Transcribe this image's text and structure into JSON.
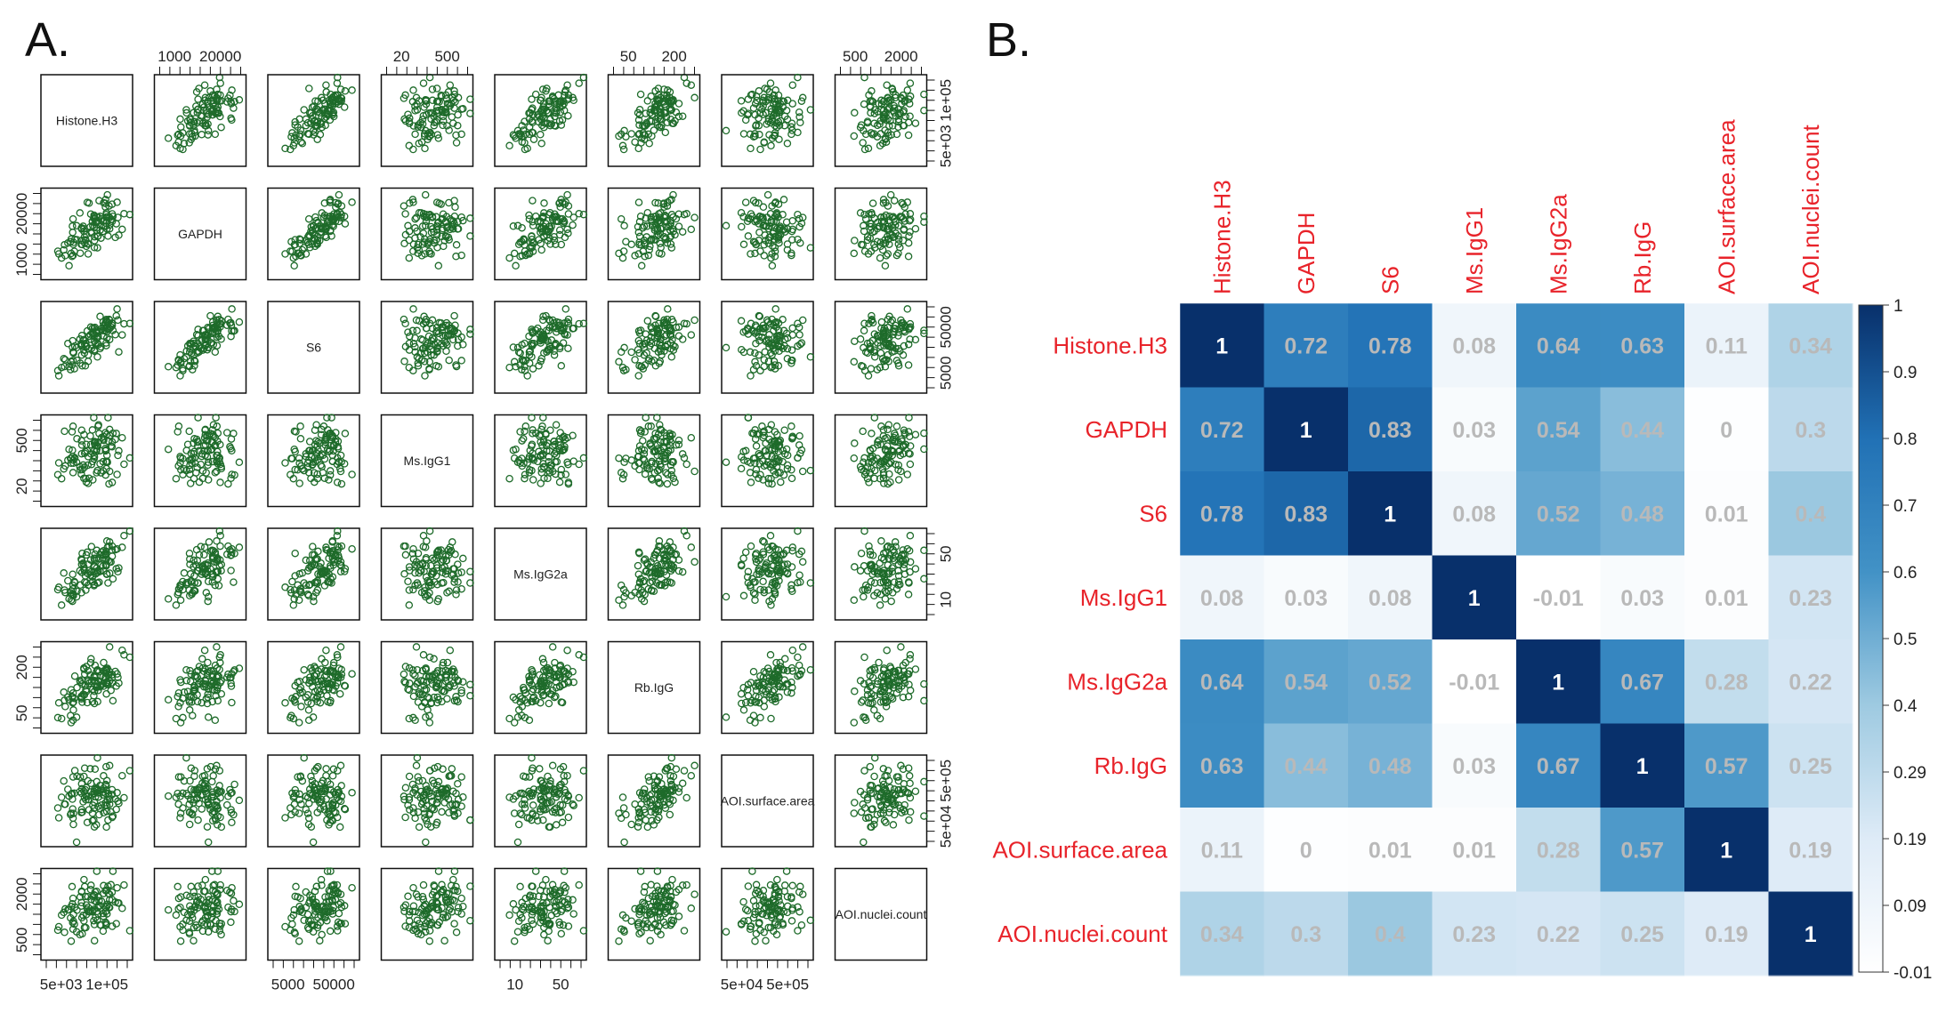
{
  "panels": {
    "a_label": "A.",
    "b_label": "B."
  },
  "scatter_matrix": {
    "variables": [
      "Histone.H3",
      "GAPDH",
      "S6",
      "Ms.IgG1",
      "Ms.IgG2a",
      "Rb.IgG",
      "AOI.surface.area",
      "AOI.nuclei.count"
    ],
    "point_color": "#1e6b2a",
    "top_ticks": [
      {
        "col": 1,
        "labels": [
          "1000",
          "20000"
        ]
      },
      {
        "col": 3,
        "labels": [
          "20",
          "500"
        ]
      },
      {
        "col": 5,
        "labels": [
          "50",
          "200"
        ]
      },
      {
        "col": 7,
        "labels": [
          "500",
          "2000"
        ]
      }
    ],
    "bottom_ticks": [
      {
        "col": 0,
        "labels": [
          "5e+03",
          "1e+05"
        ]
      },
      {
        "col": 2,
        "labels": [
          "5000",
          "50000"
        ]
      },
      {
        "col": 4,
        "labels": [
          "10",
          "50"
        ]
      },
      {
        "col": 6,
        "labels": [
          "5e+04",
          "5e+05"
        ]
      }
    ],
    "left_ticks": [
      {
        "row": 1,
        "labels": [
          "1000",
          "20000"
        ]
      },
      {
        "row": 3,
        "labels": [
          "20",
          "500"
        ]
      },
      {
        "row": 5,
        "labels": [
          "50",
          "200"
        ]
      },
      {
        "row": 7,
        "labels": [
          "500",
          "2000"
        ]
      }
    ],
    "right_ticks": [
      {
        "row": 0,
        "labels": [
          "5e+03",
          "1e+05"
        ]
      },
      {
        "row": 2,
        "labels": [
          "5000",
          "50000"
        ]
      },
      {
        "row": 4,
        "labels": [
          "10",
          "50"
        ]
      },
      {
        "row": 6,
        "labels": [
          "5e+04",
          "5e+05"
        ]
      }
    ]
  },
  "chart_data": [
    {
      "type": "scatter",
      "title": "A.",
      "description": "Pairwise scatterplot matrix",
      "variables": [
        "Histone.H3",
        "GAPDH",
        "S6",
        "Ms.IgG1",
        "Ms.IgG2a",
        "Rb.IgG",
        "AOI.surface.area",
        "AOI.nuclei.count"
      ],
      "axis_scale": "log",
      "axis_ticks": {
        "Histone.H3": [
          "5e+03",
          "1e+05"
        ],
        "GAPDH": [
          "1000",
          "20000"
        ],
        "S6": [
          "5000",
          "50000"
        ],
        "Ms.IgG1": [
          "20",
          "500"
        ],
        "Ms.IgG2a": [
          "10",
          "50"
        ],
        "Rb.IgG": [
          "50",
          "200"
        ],
        "AOI.surface.area": [
          "5e+04",
          "5e+05"
        ],
        "AOI.nuclei.count": [
          "500",
          "2000"
        ]
      }
    },
    {
      "type": "heatmap",
      "title": "B.",
      "rows": [
        "Histone.H3",
        "GAPDH",
        "S6",
        "Ms.IgG1",
        "Ms.IgG2a",
        "Rb.IgG",
        "AOI.surface.area",
        "AOI.nuclei.count"
      ],
      "cols": [
        "Histone.H3",
        "GAPDH",
        "S6",
        "Ms.IgG1",
        "Ms.IgG2a",
        "Rb.IgG",
        "AOI.surface.area",
        "AOI.nuclei.count"
      ],
      "values": [
        [
          1,
          0.72,
          0.78,
          0.08,
          0.64,
          0.63,
          0.11,
          0.34
        ],
        [
          0.72,
          1,
          0.83,
          0.03,
          0.54,
          0.44,
          0,
          0.3
        ],
        [
          0.78,
          0.83,
          1,
          0.08,
          0.52,
          0.48,
          0.01,
          0.4
        ],
        [
          0.08,
          0.03,
          0.08,
          1,
          -0.01,
          0.03,
          0.01,
          0.23
        ],
        [
          0.64,
          0.54,
          0.52,
          -0.01,
          1,
          0.67,
          0.28,
          0.22
        ],
        [
          0.63,
          0.44,
          0.48,
          0.03,
          0.67,
          1,
          0.57,
          0.25
        ],
        [
          0.11,
          0,
          0.01,
          0.01,
          0.28,
          0.57,
          1,
          0.19
        ],
        [
          0.34,
          0.3,
          0.4,
          0.23,
          0.22,
          0.25,
          0.19,
          1
        ]
      ],
      "colorbar": {
        "ticks": [
          "1",
          "0.9",
          "0.8",
          "0.7",
          "0.6",
          "0.5",
          "0.4",
          "0.29",
          "0.19",
          "0.09",
          "-0.01"
        ],
        "range": [
          -0.01,
          1
        ],
        "low_color": "#ffffff",
        "high_color": "#08306b"
      },
      "label_color": "#e8232a"
    }
  ]
}
